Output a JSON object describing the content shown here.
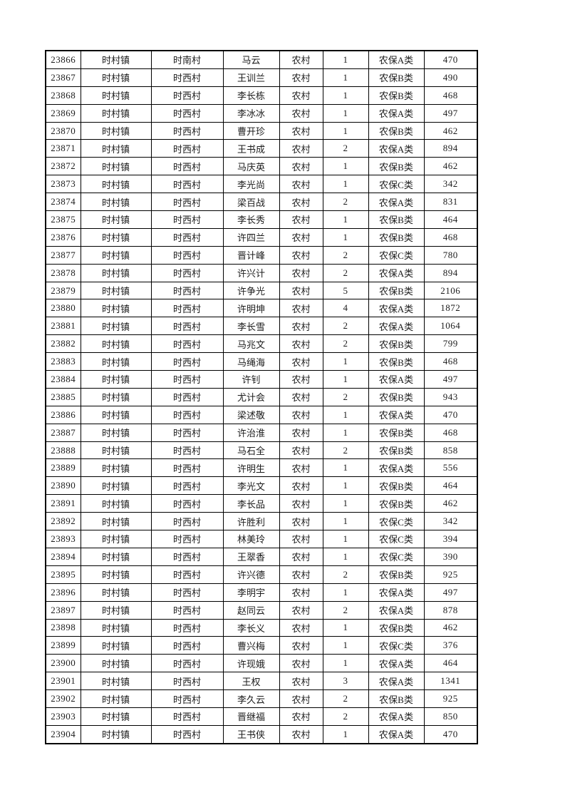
{
  "document": {
    "kind": "pension-register-table-page",
    "background_color": "#ffffff",
    "border_color": "#000000",
    "text_color": "#1c1c1c"
  },
  "table": {
    "rows": [
      [
        "23866",
        "时村镇",
        "时南村",
        "马云",
        "农村",
        "1",
        "农保A类",
        "470"
      ],
      [
        "23867",
        "时村镇",
        "时西村",
        "王训兰",
        "农村",
        "1",
        "农保B类",
        "490"
      ],
      [
        "23868",
        "时村镇",
        "时西村",
        "李长栋",
        "农村",
        "1",
        "农保B类",
        "468"
      ],
      [
        "23869",
        "时村镇",
        "时西村",
        "李冰冰",
        "农村",
        "1",
        "农保A类",
        "497"
      ],
      [
        "23870",
        "时村镇",
        "时西村",
        "曹开珍",
        "农村",
        "1",
        "农保B类",
        "462"
      ],
      [
        "23871",
        "时村镇",
        "时西村",
        "王书成",
        "农村",
        "2",
        "农保A类",
        "894"
      ],
      [
        "23872",
        "时村镇",
        "时西村",
        "马庆英",
        "农村",
        "1",
        "农保B类",
        "462"
      ],
      [
        "23873",
        "时村镇",
        "时西村",
        "李光尚",
        "农村",
        "1",
        "农保C类",
        "342"
      ],
      [
        "23874",
        "时村镇",
        "时西村",
        "梁百战",
        "农村",
        "2",
        "农保A类",
        "831"
      ],
      [
        "23875",
        "时村镇",
        "时西村",
        "李长秀",
        "农村",
        "1",
        "农保B类",
        "464"
      ],
      [
        "23876",
        "时村镇",
        "时西村",
        "许四兰",
        "农村",
        "1",
        "农保B类",
        "468"
      ],
      [
        "23877",
        "时村镇",
        "时西村",
        "晋计峰",
        "农村",
        "2",
        "农保C类",
        "780"
      ],
      [
        "23878",
        "时村镇",
        "时西村",
        "许兴计",
        "农村",
        "2",
        "农保A类",
        "894"
      ],
      [
        "23879",
        "时村镇",
        "时西村",
        "许争光",
        "农村",
        "5",
        "农保B类",
        "2106"
      ],
      [
        "23880",
        "时村镇",
        "时西村",
        "许明坤",
        "农村",
        "4",
        "农保A类",
        "1872"
      ],
      [
        "23881",
        "时村镇",
        "时西村",
        "李长雪",
        "农村",
        "2",
        "农保A类",
        "1064"
      ],
      [
        "23882",
        "时村镇",
        "时西村",
        "马兆文",
        "农村",
        "2",
        "农保B类",
        "799"
      ],
      [
        "23883",
        "时村镇",
        "时西村",
        "马绳海",
        "农村",
        "1",
        "农保B类",
        "468"
      ],
      [
        "23884",
        "时村镇",
        "时西村",
        "许钊",
        "农村",
        "1",
        "农保A类",
        "497"
      ],
      [
        "23885",
        "时村镇",
        "时西村",
        "尤计会",
        "农村",
        "2",
        "农保B类",
        "943"
      ],
      [
        "23886",
        "时村镇",
        "时西村",
        "梁述敬",
        "农村",
        "1",
        "农保A类",
        "470"
      ],
      [
        "23887",
        "时村镇",
        "时西村",
        "许治淮",
        "农村",
        "1",
        "农保B类",
        "468"
      ],
      [
        "23888",
        "时村镇",
        "时西村",
        "马石全",
        "农村",
        "2",
        "农保B类",
        "858"
      ],
      [
        "23889",
        "时村镇",
        "时西村",
        "许明生",
        "农村",
        "1",
        "农保A类",
        "556"
      ],
      [
        "23890",
        "时村镇",
        "时西村",
        "李光文",
        "农村",
        "1",
        "农保B类",
        "464"
      ],
      [
        "23891",
        "时村镇",
        "时西村",
        "李长品",
        "农村",
        "1",
        "农保B类",
        "462"
      ],
      [
        "23892",
        "时村镇",
        "时西村",
        "许胜利",
        "农村",
        "1",
        "农保C类",
        "342"
      ],
      [
        "23893",
        "时村镇",
        "时西村",
        "林美玲",
        "农村",
        "1",
        "农保C类",
        "394"
      ],
      [
        "23894",
        "时村镇",
        "时西村",
        "王翠香",
        "农村",
        "1",
        "农保C类",
        "390"
      ],
      [
        "23895",
        "时村镇",
        "时西村",
        "许兴德",
        "农村",
        "2",
        "农保B类",
        "925"
      ],
      [
        "23896",
        "时村镇",
        "时西村",
        "李明宇",
        "农村",
        "1",
        "农保A类",
        "497"
      ],
      [
        "23897",
        "时村镇",
        "时西村",
        "赵同云",
        "农村",
        "2",
        "农保A类",
        "878"
      ],
      [
        "23898",
        "时村镇",
        "时西村",
        "李长义",
        "农村",
        "1",
        "农保B类",
        "462"
      ],
      [
        "23899",
        "时村镇",
        "时西村",
        "曹兴梅",
        "农村",
        "1",
        "农保C类",
        "376"
      ],
      [
        "23900",
        "时村镇",
        "时西村",
        "许现娥",
        "农村",
        "1",
        "农保A类",
        "464"
      ],
      [
        "23901",
        "时村镇",
        "时西村",
        "王权",
        "农村",
        "3",
        "农保A类",
        "1341"
      ],
      [
        "23902",
        "时村镇",
        "时西村",
        "李久云",
        "农村",
        "2",
        "农保B类",
        "925"
      ],
      [
        "23903",
        "时村镇",
        "时西村",
        "晋继福",
        "农村",
        "2",
        "农保A类",
        "850"
      ],
      [
        "23904",
        "时村镇",
        "时西村",
        "王书侠",
        "农村",
        "1",
        "农保A类",
        "470"
      ]
    ]
  }
}
